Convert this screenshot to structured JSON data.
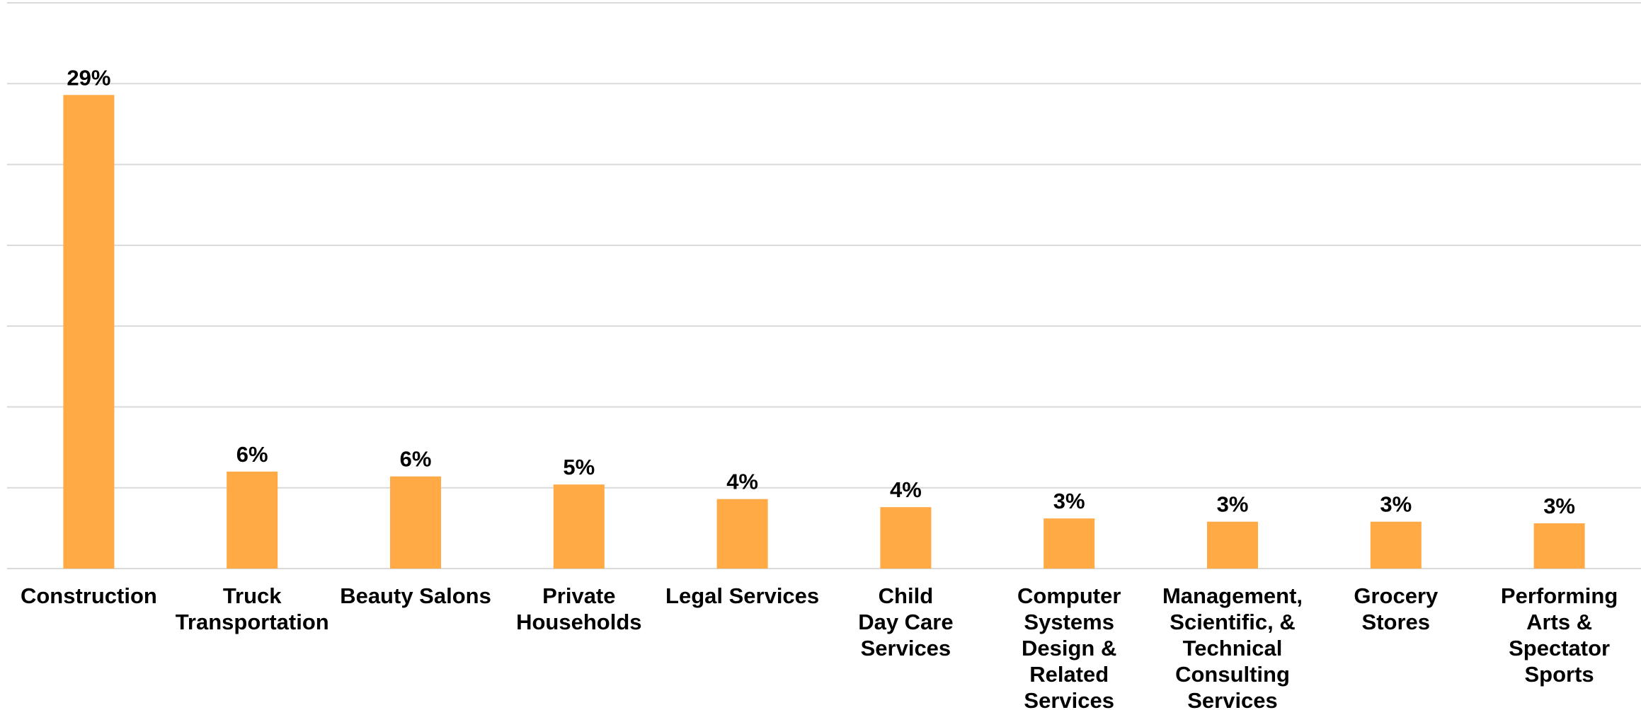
{
  "chart_data": {
    "type": "bar",
    "categories": [
      "Construction",
      "Truck Transportation",
      "Beauty Salons",
      "Private Households",
      "Legal Services",
      "Child Day Care Services",
      "Computer Systems Design & Related Services",
      "Management, Scientific, & Technical Consulting Services",
      "Grocery Stores",
      "Performing Arts & Spectator Sports"
    ],
    "category_lines": [
      [
        "Construction"
      ],
      [
        "Truck",
        "Transportation"
      ],
      [
        "Beauty Salons"
      ],
      [
        "Private",
        "Households"
      ],
      [
        "Legal Services"
      ],
      [
        "Child",
        "Day Care",
        "Services"
      ],
      [
        "Computer",
        "Systems",
        "Design &",
        "Related",
        "Services"
      ],
      [
        "Management,",
        "Scientific, &",
        "Technical",
        "Consulting",
        "Services"
      ],
      [
        "Grocery",
        "Stores"
      ],
      [
        "Performing",
        "Arts &",
        "Spectator",
        "Sports"
      ]
    ],
    "values": [
      29.3,
      6.0,
      5.7,
      5.2,
      4.3,
      3.8,
      3.1,
      2.9,
      2.9,
      2.8
    ],
    "data_labels": [
      "29%",
      "6%",
      "6%",
      "5%",
      "4%",
      "4%",
      "3%",
      "3%",
      "3%",
      "3%"
    ],
    "ylim": [
      0,
      35
    ],
    "grid": true,
    "legend": "none",
    "bar_color": "#FFAA44"
  }
}
